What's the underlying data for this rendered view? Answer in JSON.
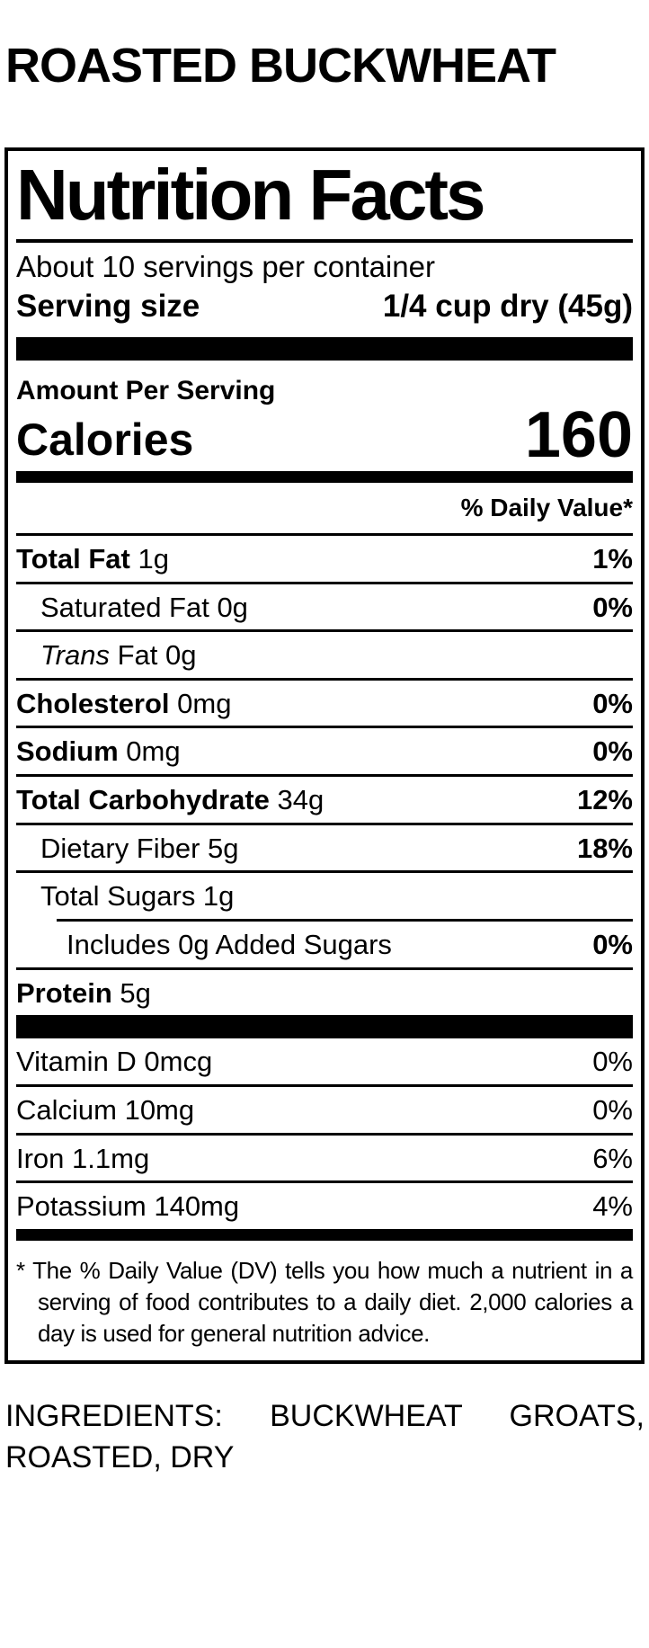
{
  "page_title": "ROASTED BUCKWHEAT",
  "label": {
    "title": "Nutrition Facts",
    "servings_per_container": "About 10 servings per container",
    "serving_size_label": "Serving size",
    "serving_size_value": "1/4 cup dry (45g)",
    "amount_per_serving": "Amount Per Serving",
    "calories_label": "Calories",
    "calories_value": "160",
    "daily_value_header": "% Daily Value*",
    "nutrients": [
      {
        "bold": "Total Fat",
        "regular": " 1g",
        "pct": "1%"
      },
      {
        "bold": "",
        "regular": "Saturated Fat 0g",
        "pct": "0%"
      },
      {
        "italic": "Trans",
        "regular": " Fat 0g",
        "pct": ""
      },
      {
        "bold": "Cholesterol",
        "regular": " 0mg",
        "pct": "0%"
      },
      {
        "bold": "Sodium",
        "regular": " 0mg",
        "pct": "0%"
      },
      {
        "bold": "Total Carbohydrate",
        "regular": " 34g",
        "pct": "12%"
      },
      {
        "bold": "",
        "regular": "Dietary Fiber 5g",
        "pct": "18%"
      },
      {
        "bold": "",
        "regular": "Total Sugars 1g",
        "pct": ""
      },
      {
        "bold": "",
        "regular": "Includes 0g Added Sugars",
        "pct": "0%"
      },
      {
        "bold": "Protein",
        "regular": " 5g",
        "pct": ""
      }
    ],
    "vitamins": [
      {
        "label": "Vitamin D 0mcg",
        "pct": "0%"
      },
      {
        "label": "Calcium 10mg",
        "pct": "0%"
      },
      {
        "label": "Iron 1.1mg",
        "pct": "6%"
      },
      {
        "label": "Potassium 140mg",
        "pct": "4%"
      }
    ],
    "footnote": "* The % Daily Value (DV) tells you how much a nutrient in a serving of food contributes to a daily diet. 2,000 calories a day is used for general nutrition advice."
  },
  "ingredients": "INGREDIENTS: BUCKWHEAT GROATS, ROASTED, DRY",
  "colors": {
    "text": "#000000",
    "background": "#ffffff"
  }
}
